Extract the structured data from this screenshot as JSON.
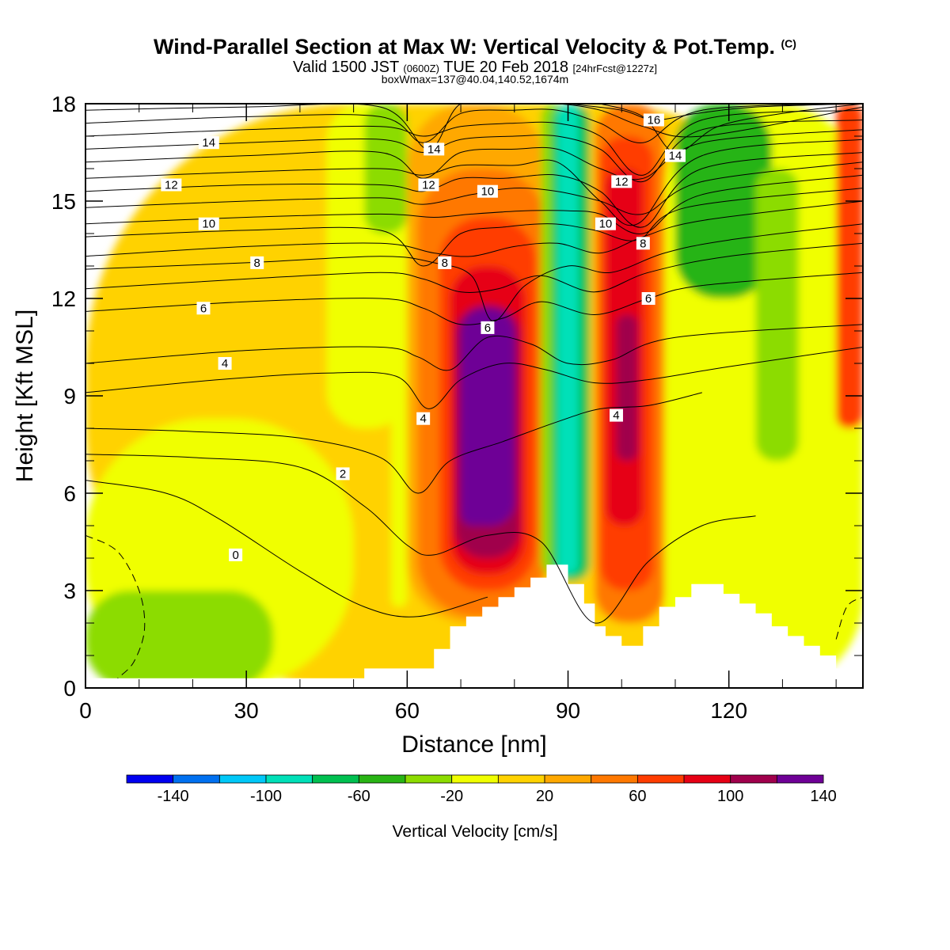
{
  "header": {
    "title": "Wind-Parallel Section at Max W: Vertical Velocity & Pot.Temp.",
    "copyright": "(C)",
    "valid_prefix": "Valid 1500 JST",
    "valid_z": "(0600Z)",
    "valid_date": "TUE 20 Feb 2018",
    "fcst": "[24hrFcst@1227z]",
    "boxmax": "boxWmax=137@40.04,140.52,1674m"
  },
  "chart_data": {
    "type": "heatmap",
    "title": "Wind-Parallel Section at Max W: Vertical Velocity & Pot.Temp.",
    "xlabel": "Distance [nm]",
    "ylabel": "Height [Kft MSL]",
    "xlim": [
      0,
      145
    ],
    "ylim": [
      0,
      18
    ],
    "x_ticks": [
      "0",
      "30",
      "60",
      "90",
      "120"
    ],
    "y_ticks": [
      "0",
      "3",
      "6",
      "9",
      "12",
      "15",
      "18"
    ],
    "colorbar": {
      "label": "Vertical Velocity [cm/s]",
      "tick_labels": [
        "-140",
        "-100",
        "-60",
        "-20",
        "20",
        "60",
        "100",
        "140"
      ],
      "levels": [
        -160,
        -140,
        -120,
        -100,
        -80,
        -60,
        -40,
        -20,
        0,
        20,
        40,
        60,
        80,
        100,
        120,
        140,
        160
      ],
      "colors": [
        "#0000f0",
        "#0070f0",
        "#00c8f8",
        "#00e0b8",
        "#00c050",
        "#28b414",
        "#8cdc00",
        "#f0ff00",
        "#ffd200",
        "#ffa800",
        "#ff7800",
        "#ff3c00",
        "#e60014",
        "#a0004c",
        "#6e0096"
      ]
    },
    "velocity_cells": [
      {
        "x": [
          0,
          145
        ],
        "y": [
          0,
          18
        ],
        "w": 10
      },
      {
        "x": [
          0,
          50
        ],
        "y": [
          0,
          8.3
        ],
        "w": -10
      },
      {
        "x": [
          0,
          35
        ],
        "y": [
          0,
          3
        ],
        "w": -30
      },
      {
        "x": [
          45,
          60
        ],
        "y": [
          8,
          18
        ],
        "w": -10
      },
      {
        "x": [
          52,
          60
        ],
        "y": [
          14,
          18
        ],
        "w": -30
      },
      {
        "x": [
          57,
          60
        ],
        "y": [
          2.5,
          9
        ],
        "w": -10
      },
      {
        "x": [
          60,
          86
        ],
        "y": [
          2,
          18
        ],
        "w": 30
      },
      {
        "x": [
          62,
          86
        ],
        "y": [
          2.2,
          16
        ],
        "w": 50
      },
      {
        "x": [
          66,
          84
        ],
        "y": [
          3,
          14.5
        ],
        "w": 70
      },
      {
        "x": [
          68,
          82
        ],
        "y": [
          3.5,
          13
        ],
        "w": 90
      },
      {
        "x": [
          69,
          81
        ],
        "y": [
          4,
          11.8
        ],
        "w": 110
      },
      {
        "x": [
          70,
          80
        ],
        "y": [
          5,
          11.7
        ],
        "w": 130
      },
      {
        "x": [
          70,
          75
        ],
        "y": [
          5,
          8.2
        ],
        "w": 150
      },
      {
        "x": [
          85,
          90
        ],
        "y": [
          3.5,
          18
        ],
        "w": -40
      },
      {
        "x": [
          87,
          94
        ],
        "y": [
          3.3,
          18
        ],
        "w": -70
      },
      {
        "x": [
          88,
          92
        ],
        "y": [
          3.5,
          18
        ],
        "w": -100
      },
      {
        "x": [
          95,
          108
        ],
        "y": [
          2,
          18
        ],
        "w": 40
      },
      {
        "x": [
          96,
          106
        ],
        "y": [
          3,
          17
        ],
        "w": 60
      },
      {
        "x": [
          97,
          104
        ],
        "y": [
          5,
          16
        ],
        "w": 80
      },
      {
        "x": [
          99,
          103
        ],
        "y": [
          7,
          11.5
        ],
        "w": 110
      },
      {
        "x": [
          108,
          145
        ],
        "y": [
          0,
          18
        ],
        "w": -20
      },
      {
        "x": [
          110,
          128
        ],
        "y": [
          12,
          18
        ],
        "w": -50
      },
      {
        "x": [
          125,
          133
        ],
        "y": [
          7,
          16
        ],
        "w": -30
      },
      {
        "x": [
          140,
          145
        ],
        "y": [
          8,
          18
        ],
        "w": 60
      }
    ],
    "terrain": {
      "x": [
        0,
        52,
        52,
        65,
        65,
        68,
        68,
        71,
        71,
        74,
        74,
        77,
        77,
        80,
        80,
        83,
        83,
        86,
        86,
        90,
        90,
        93,
        93,
        95,
        95,
        97,
        97,
        100,
        100,
        104,
        104,
        107,
        107,
        110,
        110,
        113,
        113,
        119,
        119,
        122,
        122,
        125,
        125,
        128,
        128,
        131,
        131,
        134,
        134,
        137,
        137,
        140,
        140,
        145
      ],
      "y": [
        0.3,
        0.3,
        0.6,
        0.6,
        1.2,
        1.2,
        1.9,
        1.9,
        2.2,
        2.2,
        2.5,
        2.5,
        2.8,
        2.8,
        3.1,
        3.1,
        3.4,
        3.4,
        3.8,
        3.8,
        3.2,
        3.2,
        2.6,
        2.6,
        1.9,
        1.9,
        1.6,
        1.6,
        1.3,
        1.3,
        1.9,
        1.9,
        2.5,
        2.5,
        2.8,
        2.8,
        3.2,
        3.2,
        2.9,
        2.9,
        2.6,
        2.6,
        2.3,
        2.3,
        1.9,
        1.9,
        1.6,
        1.6,
        1.3,
        1.3,
        1.0,
        1.0,
        0.6,
        0.6
      ]
    },
    "theta_contours": [
      {
        "label": "0",
        "x": [
          0,
          15,
          25,
          40,
          52,
          62,
          75
        ],
        "y": [
          6.4,
          6.0,
          5.2,
          3.6,
          2.5,
          2.2,
          2.8
        ],
        "label_at": [
          28,
          4.1
        ]
      },
      {
        "label": "2",
        "x": [
          0,
          20,
          40,
          52,
          60,
          65,
          75,
          85,
          95,
          105,
          115,
          125
        ],
        "y": [
          7.2,
          7.1,
          6.8,
          5.6,
          4.4,
          4.1,
          4.7,
          4.5,
          2.0,
          3.9,
          5.0,
          5.3
        ],
        "label_at": [
          48,
          6.6
        ]
      },
      {
        "label": "4",
        "x": [
          0,
          20,
          40,
          55,
          62,
          68,
          78,
          88,
          96,
          105,
          115
        ],
        "y": [
          8.0,
          7.9,
          7.7,
          7.1,
          6.0,
          7.0,
          7.6,
          8.2,
          8.6,
          8.7,
          9.1
        ],
        "label_at": [
          63,
          8.3
        ]
      },
      {
        "label": "4",
        "x": [
          0,
          25,
          45,
          58,
          64,
          70,
          78,
          86,
          95,
          105,
          120,
          145
        ],
        "y": [
          9.1,
          9.5,
          9.7,
          9.6,
          8.6,
          9.5,
          10.0,
          9.8,
          9.4,
          9.5,
          9.9,
          10.5
        ],
        "label_at": [
          99,
          8.4
        ]
      },
      {
        "label": "4",
        "x": [
          0,
          30,
          55,
          62,
          68,
          75,
          83,
          90,
          98,
          110,
          145
        ],
        "y": [
          10.0,
          10.4,
          10.5,
          10.2,
          9.8,
          10.8,
          10.6,
          10.0,
          10.1,
          10.8,
          11.2
        ],
        "label_at": [
          26,
          10.0
        ]
      },
      {
        "label": "6",
        "x": [
          0,
          30,
          55,
          63,
          70,
          78,
          85,
          95,
          105,
          115,
          145
        ],
        "y": [
          11.6,
          11.9,
          12.0,
          11.7,
          11.2,
          11.4,
          11.9,
          11.5,
          12.0,
          12.4,
          12.8
        ],
        "label_at": [
          22,
          11.7
        ]
      },
      {
        "label": "6",
        "x": [
          0,
          30,
          55,
          63,
          70,
          77,
          85,
          95,
          105,
          120,
          145
        ],
        "y": [
          12.3,
          12.6,
          12.8,
          12.6,
          12.2,
          12.3,
          12.7,
          12.2,
          12.8,
          13.3,
          13.7
        ],
        "label_at": [
          105,
          12.0
        ]
      },
      {
        "label": "6",
        "x": [
          0,
          30,
          55,
          65,
          72,
          76,
          82,
          90,
          98,
          108,
          120,
          145
        ],
        "y": [
          12.9,
          13.1,
          13.3,
          13.1,
          12.7,
          11.3,
          12.4,
          13.0,
          12.8,
          13.4,
          13.8,
          14.3
        ],
        "label_at": [
          75,
          11.1
        ]
      },
      {
        "label": "8",
        "x": [
          0,
          30,
          55,
          65,
          72,
          80,
          88,
          96,
          104,
          115,
          145
        ],
        "y": [
          13.3,
          13.6,
          13.7,
          13.4,
          13.3,
          13.6,
          13.7,
          13.4,
          13.9,
          14.4,
          15.0
        ],
        "label_at": [
          32,
          13.1
        ]
      },
      {
        "label": "8",
        "x": [
          0,
          30,
          55,
          63,
          70,
          78,
          87,
          95,
          103,
          112,
          145
        ],
        "y": [
          13.9,
          14.1,
          14.1,
          13.0,
          14.0,
          14.2,
          14.3,
          14.1,
          13.8,
          14.8,
          15.4
        ],
        "label_at": [
          67,
          13.1
        ]
      },
      {
        "label": "8",
        "x": [
          0,
          30,
          55,
          65,
          72,
          82,
          90,
          96,
          104,
          115,
          145
        ],
        "y": [
          14.3,
          14.5,
          14.6,
          14.5,
          14.6,
          14.7,
          14.7,
          14.6,
          14.0,
          15.2,
          15.8
        ],
        "label_at": [
          104,
          13.7
        ]
      },
      {
        "label": "10",
        "x": [
          0,
          30,
          55,
          63,
          72,
          80,
          88,
          96,
          104,
          115,
          145
        ],
        "y": [
          14.8,
          15.0,
          15.1,
          14.9,
          15.2,
          15.4,
          15.3,
          15.0,
          14.6,
          15.6,
          16.2
        ],
        "label_at": [
          23,
          14.3
        ]
      },
      {
        "label": "10",
        "x": [
          0,
          30,
          55,
          63,
          70,
          78,
          88,
          96,
          104,
          115,
          145
        ],
        "y": [
          15.3,
          15.5,
          15.5,
          15.3,
          15.7,
          15.7,
          15.8,
          15.3,
          14.2,
          16.0,
          16.5
        ],
        "label_at": [
          75,
          15.3
        ]
      },
      {
        "label": "10",
        "x": [
          0,
          30,
          55,
          63,
          70,
          80,
          88,
          96,
          103,
          115,
          145
        ],
        "y": [
          15.7,
          15.9,
          16.0,
          15.8,
          16.1,
          16.1,
          16.2,
          15.0,
          14.3,
          16.4,
          16.9
        ],
        "label_at": [
          97,
          14.3
        ]
      },
      {
        "label": "12",
        "x": [
          0,
          30,
          55,
          63,
          70,
          80,
          88,
          96,
          104,
          115,
          145
        ],
        "y": [
          16.2,
          16.4,
          16.5,
          15.7,
          16.5,
          16.6,
          16.6,
          16.0,
          15.7,
          16.8,
          17.2
        ],
        "label_at": [
          16,
          15.5
        ]
      },
      {
        "label": "12",
        "x": [
          0,
          30,
          55,
          63,
          70,
          80,
          88,
          96,
          104,
          115,
          145
        ],
        "y": [
          16.6,
          16.8,
          16.9,
          16.5,
          16.9,
          17.0,
          17.0,
          16.6,
          15.6,
          17.2,
          17.5
        ],
        "label_at": [
          64,
          15.5
        ]
      },
      {
        "label": "12",
        "x": [
          0,
          30,
          55,
          63,
          70,
          80,
          88,
          96,
          104,
          115,
          145
        ],
        "y": [
          17.0,
          17.2,
          17.3,
          17.0,
          17.3,
          17.4,
          17.4,
          17.0,
          15.8,
          17.5,
          17.8
        ],
        "label_at": [
          100,
          15.6
        ]
      },
      {
        "label": "14",
        "x": [
          0,
          30,
          55,
          63,
          70,
          80,
          88,
          96,
          104,
          115,
          145
        ],
        "y": [
          17.4,
          17.6,
          17.6,
          16.8,
          17.7,
          17.8,
          17.8,
          17.4,
          16.8,
          17.8,
          18.0
        ],
        "label_at": [
          23,
          16.8
        ]
      },
      {
        "label": "14",
        "x": [
          0,
          30,
          55,
          64,
          70,
          80,
          88,
          96,
          104,
          115,
          145
        ],
        "y": [
          17.8,
          17.9,
          17.9,
          16.6,
          18.0,
          18.0,
          18.0,
          17.8,
          17.3,
          17.0,
          17.9
        ],
        "label_at": [
          65,
          16.6
        ]
      },
      {
        "label": "14",
        "x": [
          96,
          104,
          110,
          118,
          130,
          145
        ],
        "y": [
          18.0,
          17.6,
          16.5,
          17.3,
          17.7,
          18.0
        ],
        "label_at": [
          110,
          16.4
        ]
      },
      {
        "label": "16",
        "x": [
          90,
          100,
          106,
          114,
          125,
          145
        ],
        "y": [
          18.0,
          17.8,
          17.5,
          17.7,
          17.9,
          18.0
        ],
        "label_at": [
          106,
          17.5
        ]
      }
    ],
    "dashed_contours": [
      {
        "x": [
          0,
          6,
          10,
          11,
          9,
          6
        ],
        "y": [
          4.7,
          4.2,
          3.0,
          1.8,
          0.8,
          0.3
        ]
      },
      {
        "x": [
          140,
          142,
          145
        ],
        "y": [
          1.5,
          2.5,
          2.8
        ]
      }
    ]
  }
}
